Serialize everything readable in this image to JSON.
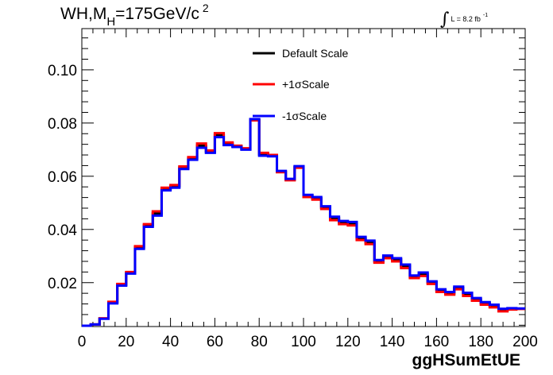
{
  "header": {
    "title_main": "WH,M",
    "title_sub": "H",
    "title_rest": "=175GeV/c",
    "title_sup": "2",
    "lumi_integral": "∫",
    "lumi_text": "L = 8.2 fb",
    "lumi_sup": "-1"
  },
  "chart_data": {
    "type": "line",
    "title": "WH,MH=175GeV/c2",
    "xlabel": "ggHSumEtUE",
    "ylabel": "",
    "xlim": [
      0,
      200
    ],
    "ylim": [
      0.0035,
      0.1155
    ],
    "x_ticks": [
      "0",
      "20",
      "40",
      "60",
      "80",
      "100",
      "120",
      "140",
      "160",
      "180",
      "200"
    ],
    "y_ticks": [
      "0.02",
      "0.04",
      "0.06",
      "0.08",
      "0.10"
    ],
    "bin_width": 4,
    "bin_edges": [
      0,
      4,
      8,
      12,
      16,
      20,
      24,
      28,
      32,
      36,
      40,
      44,
      48,
      52,
      56,
      60,
      64,
      68,
      72,
      76,
      80,
      84,
      88,
      92,
      96,
      100,
      104,
      108,
      112,
      116,
      120,
      124,
      128,
      132,
      136,
      140,
      144,
      148,
      152,
      156,
      160,
      164,
      168,
      172,
      176,
      180,
      184,
      188,
      192,
      196,
      200
    ],
    "legend_position": "top-center",
    "series": [
      {
        "name": "Default Scale",
        "color": "#000000",
        "values": [
          0.0038,
          0.0043,
          0.0065,
          0.0125,
          0.0192,
          0.0237,
          0.0332,
          0.0415,
          0.046,
          0.0552,
          0.0562,
          0.0632,
          0.0667,
          0.0715,
          0.0692,
          0.0755,
          0.0722,
          0.0712,
          0.0702,
          0.0812,
          0.0682,
          0.0677,
          0.0617,
          0.0587,
          0.0635,
          0.0527,
          0.0517,
          0.0482,
          0.0442,
          0.0427,
          0.0422,
          0.0367,
          0.0352,
          0.028,
          0.0297,
          0.0287,
          0.0262,
          0.0222,
          0.0232,
          0.02,
          0.017,
          0.016,
          0.018,
          0.0157,
          0.0137,
          0.0122,
          0.0112,
          0.0097,
          0.0102,
          0.0102
        ]
      },
      {
        "name": "+1σScale",
        "color": "#ff0000",
        "values": [
          0.0038,
          0.0043,
          0.0066,
          0.0128,
          0.0195,
          0.024,
          0.0337,
          0.042,
          0.0468,
          0.0557,
          0.0567,
          0.0637,
          0.0672,
          0.0723,
          0.0697,
          0.0762,
          0.0727,
          0.0715,
          0.0705,
          0.081,
          0.0688,
          0.068,
          0.0615,
          0.0585,
          0.0632,
          0.0522,
          0.0512,
          0.0477,
          0.0435,
          0.042,
          0.0415,
          0.036,
          0.0345,
          0.0275,
          0.0292,
          0.028,
          0.0255,
          0.0217,
          0.0225,
          0.0195,
          0.0165,
          0.0155,
          0.0175,
          0.015,
          0.0132,
          0.0117,
          0.0107,
          0.0092,
          0.0099,
          0.0101
        ]
      },
      {
        "name": "-1σScale",
        "color": "#0000ff",
        "values": [
          0.0038,
          0.0043,
          0.0064,
          0.0122,
          0.0189,
          0.0234,
          0.0327,
          0.041,
          0.0452,
          0.0547,
          0.0557,
          0.0627,
          0.0662,
          0.0707,
          0.0688,
          0.0747,
          0.0717,
          0.071,
          0.07,
          0.0815,
          0.0677,
          0.0675,
          0.062,
          0.059,
          0.0638,
          0.053,
          0.0522,
          0.0487,
          0.0448,
          0.0432,
          0.0428,
          0.0372,
          0.0358,
          0.0285,
          0.0302,
          0.0292,
          0.0268,
          0.0227,
          0.0238,
          0.0205,
          0.0175,
          0.0165,
          0.0185,
          0.0162,
          0.0142,
          0.0127,
          0.0117,
          0.0102,
          0.0104,
          0.0103
        ]
      }
    ]
  }
}
